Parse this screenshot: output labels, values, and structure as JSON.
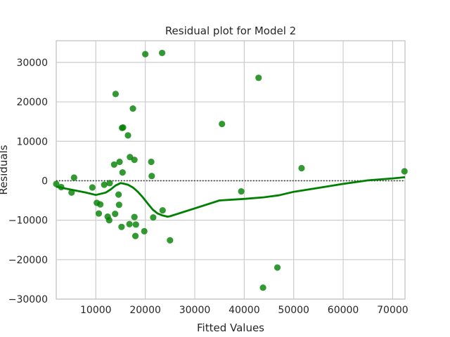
{
  "chart_data": {
    "type": "scatter",
    "title": "Residual plot for Model 2",
    "xlabel": "Fitted Values",
    "ylabel": "Residuals",
    "xlim": [
      2000,
      72500
    ],
    "ylim": [
      -30000,
      35500
    ],
    "xticks": [
      10000,
      20000,
      30000,
      40000,
      50000,
      60000,
      70000
    ],
    "yticks": [
      -30000,
      -20000,
      -10000,
      0,
      10000,
      20000,
      30000
    ],
    "xtick_labels": [
      "10000",
      "20000",
      "30000",
      "40000",
      "50000",
      "60000",
      "70000"
    ],
    "ytick_labels": [
      "−30000",
      "−20000",
      "−10000",
      "0",
      "10000",
      "20000",
      "30000"
    ],
    "grid": true,
    "zero_line": {
      "y": 0,
      "style": "dotted",
      "color": "#262626"
    },
    "colors": {
      "points": "#008000",
      "trend": "#008000",
      "grid": "#cccccc",
      "spine": "#cccccc"
    },
    "points": [
      {
        "x": 2000,
        "y": -800
      },
      {
        "x": 3000,
        "y": -1600
      },
      {
        "x": 5100,
        "y": -3000
      },
      {
        "x": 5600,
        "y": 800
      },
      {
        "x": 9300,
        "y": -1700
      },
      {
        "x": 10200,
        "y": -5600
      },
      {
        "x": 10600,
        "y": -8300
      },
      {
        "x": 10900,
        "y": -6000
      },
      {
        "x": 11700,
        "y": -1000
      },
      {
        "x": 12400,
        "y": -9100
      },
      {
        "x": 12700,
        "y": -10000
      },
      {
        "x": 12800,
        "y": -600
      },
      {
        "x": 13700,
        "y": 4100
      },
      {
        "x": 13900,
        "y": -8400
      },
      {
        "x": 14000,
        "y": 22000
      },
      {
        "x": 14600,
        "y": -3500
      },
      {
        "x": 14700,
        "y": -6100
      },
      {
        "x": 14800,
        "y": 4800
      },
      {
        "x": 15300,
        "y": 13400
      },
      {
        "x": 15400,
        "y": 2100
      },
      {
        "x": 15200,
        "y": -11700
      },
      {
        "x": 15500,
        "y": 13500
      },
      {
        "x": 16500,
        "y": 11500
      },
      {
        "x": 16900,
        "y": 6000
      },
      {
        "x": 16800,
        "y": -11000
      },
      {
        "x": 17500,
        "y": 18300
      },
      {
        "x": 17800,
        "y": 5300
      },
      {
        "x": 17800,
        "y": -9200
      },
      {
        "x": 18000,
        "y": -14000
      },
      {
        "x": 18100,
        "y": -11100
      },
      {
        "x": 19800,
        "y": -12800
      },
      {
        "x": 20000,
        "y": 32100
      },
      {
        "x": 21200,
        "y": 4800
      },
      {
        "x": 21300,
        "y": 1200
      },
      {
        "x": 21600,
        "y": -9300
      },
      {
        "x": 23400,
        "y": 32400
      },
      {
        "x": 23500,
        "y": -7500
      },
      {
        "x": 25000,
        "y": -15100
      },
      {
        "x": 35500,
        "y": 14400
      },
      {
        "x": 39400,
        "y": -2700
      },
      {
        "x": 42900,
        "y": 26100
      },
      {
        "x": 43800,
        "y": -27100
      },
      {
        "x": 46700,
        "y": -22000
      },
      {
        "x": 51600,
        "y": 3200
      },
      {
        "x": 72400,
        "y": 2400
      }
    ],
    "trend": {
      "x": [
        2000,
        4000,
        6000,
        8000,
        10000,
        12000,
        13000,
        14000,
        15000,
        15500,
        16500,
        17500,
        18500,
        19500,
        20500,
        21500,
        22500,
        23500,
        24500,
        25000,
        30000,
        35000,
        40000,
        44000,
        47000,
        50000,
        55000,
        60000,
        65000,
        70000,
        72500
      ],
      "y": [
        -1500,
        -2000,
        -2500,
        -3000,
        -3600,
        -3000,
        -2200,
        -1200,
        -600,
        -700,
        -1000,
        -1700,
        -2800,
        -4200,
        -5800,
        -7300,
        -8300,
        -8800,
        -9100,
        -9000,
        -7000,
        -5000,
        -4600,
        -4200,
        -3700,
        -2800,
        -1800,
        -800,
        100,
        600,
        900
      ]
    }
  }
}
